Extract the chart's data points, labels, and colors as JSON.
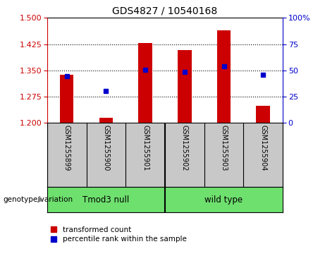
{
  "title": "GDS4827 / 10540168",
  "samples": [
    "GSM1255899",
    "GSM1255900",
    "GSM1255901",
    "GSM1255902",
    "GSM1255903",
    "GSM1255904"
  ],
  "red_bar_top": [
    1.337,
    1.215,
    1.428,
    1.408,
    1.465,
    1.248
  ],
  "red_bar_bottom": 1.2,
  "blue_dot_y": [
    1.333,
    1.291,
    1.351,
    1.346,
    1.362,
    1.338
  ],
  "groups": [
    {
      "label": "Tmod3 null",
      "start": 0,
      "end": 3,
      "color": "#6EE06E"
    },
    {
      "label": "wild type",
      "start": 3,
      "end": 6,
      "color": "#6EE06E"
    }
  ],
  "group_label_prefix": "genotype/variation",
  "ylim_left": [
    1.2,
    1.5
  ],
  "ylim_right": [
    0,
    100
  ],
  "yticks_left": [
    1.2,
    1.275,
    1.35,
    1.425,
    1.5
  ],
  "yticks_right": [
    0,
    25,
    50,
    75,
    100
  ],
  "left_color": "#CC0000",
  "right_color": "#0000CC",
  "bar_color": "#CC0000",
  "dot_color": "#0000CC",
  "sample_bg_color": "#C8C8C8",
  "plot_bg": "#FFFFFF",
  "legend_items": [
    "transformed count",
    "percentile rank within the sample"
  ]
}
